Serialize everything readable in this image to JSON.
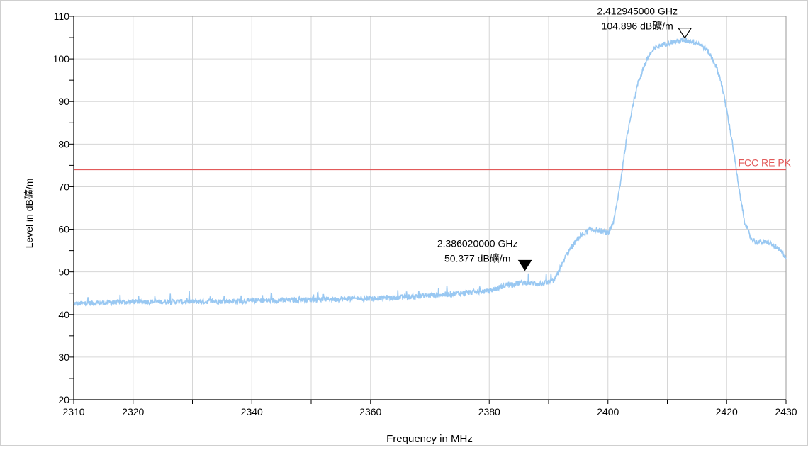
{
  "chart_data": {
    "type": "line",
    "title": "",
    "xlabel": "Frequency in MHz",
    "ylabel": "Level in dB礦/m",
    "xlim": [
      2310,
      2430
    ],
    "ylim": [
      20,
      110
    ],
    "x_ticks": [
      2310,
      2320,
      2340,
      2360,
      2380,
      2400,
      2420,
      2430
    ],
    "x_tick_labels": [
      "2310",
      "2320",
      "2340",
      "2360",
      "2380",
      "2400",
      "2420",
      "2430"
    ],
    "x_minor_grid": [
      2310,
      2320,
      2330,
      2340,
      2350,
      2360,
      2370,
      2380,
      2390,
      2400,
      2410,
      2420,
      2430
    ],
    "y_ticks": [
      20,
      30,
      40,
      50,
      60,
      70,
      80,
      90,
      100,
      110
    ],
    "y_tick_labels": [
      "20",
      "30",
      "40",
      "50",
      "60",
      "70",
      "80",
      "90",
      "100",
      "110"
    ],
    "grid": true,
    "colors": {
      "trace": "#99c8f2",
      "limit": "#e25a5a",
      "grid": "#d6d6d6",
      "marker_fill": "#000000"
    },
    "series": [
      {
        "kind": "trace",
        "x": [
          2310,
          2320,
          2330,
          2340,
          2350,
          2360,
          2365,
          2370,
          2375,
          2380,
          2383,
          2386,
          2389,
          2391,
          2393,
          2395,
          2397,
          2399,
          2400,
          2401,
          2402,
          2403,
          2404,
          2405,
          2406,
          2407,
          2408,
          2409,
          2410,
          2411,
          2412,
          2413,
          2414,
          2415,
          2416,
          2417,
          2418,
          2419,
          2420,
          2421,
          2422,
          2423,
          2424,
          2425,
          2426,
          2427,
          2428,
          2429,
          2430
        ],
        "y": [
          42.5,
          43.0,
          43.0,
          43.2,
          43.5,
          43.8,
          44.0,
          44.5,
          45.0,
          45.5,
          47.0,
          47.5,
          47.2,
          48.0,
          54.0,
          58.0,
          60.0,
          59.5,
          59.0,
          62.0,
          70.0,
          80.0,
          88.0,
          94.0,
          98.0,
          101.0,
          102.5,
          103.3,
          103.7,
          104.0,
          104.2,
          104.4,
          104.2,
          103.8,
          103.0,
          101.5,
          99.0,
          95.0,
          88.0,
          80.0,
          70.0,
          62.0,
          58.0,
          57.0,
          57.0,
          57.0,
          56.0,
          55.0,
          53.5
        ],
        "noise_amplitude": 0.6
      },
      {
        "kind": "limit",
        "name": "FCC RE PK",
        "y": 74.0
      }
    ],
    "markers": [
      {
        "style": "filled",
        "x": 2386.02,
        "y": 50.377,
        "label_freq": "2.386020000 GHz",
        "label_level": "50.377 dB礦/m"
      },
      {
        "style": "hollow",
        "x": 2412.945,
        "y": 104.896,
        "label_freq": "2.412945000 GHz",
        "label_level": "104.896 dB礦/m"
      }
    ]
  }
}
